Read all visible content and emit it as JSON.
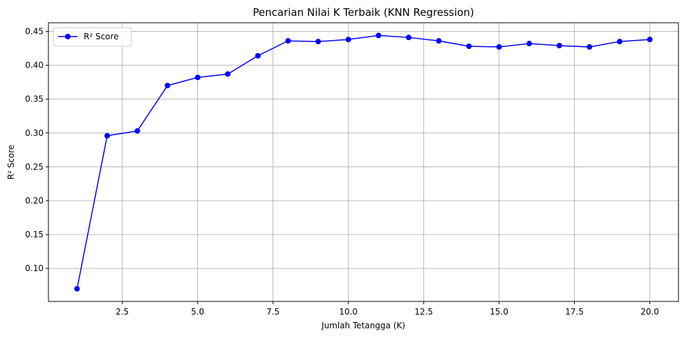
{
  "chart_data": {
    "type": "line",
    "title": "Pencarian Nilai K Terbaik (KNN Regression)",
    "xlabel": "Jumlah Tetangga (K)",
    "ylabel": "R² Score",
    "xlim": [
      0.05,
      20.95
    ],
    "ylim": [
      0.0513,
      0.4627
    ],
    "xticks": [
      "2.5",
      "5.0",
      "7.5",
      "10.0",
      "12.5",
      "15.0",
      "17.5",
      "20.0"
    ],
    "yticks": [
      "0.10",
      "0.15",
      "0.20",
      "0.25",
      "0.30",
      "0.35",
      "0.40",
      "0.45"
    ],
    "grid": true,
    "legend_position": "top-left",
    "series": [
      {
        "name": "R² Score",
        "color": "#0000ff",
        "marker": "circle",
        "x": [
          1,
          2,
          3,
          4,
          5,
          6,
          7,
          8,
          9,
          10,
          11,
          12,
          13,
          14,
          15,
          16,
          17,
          18,
          19,
          20
        ],
        "values": [
          0.07,
          0.296,
          0.303,
          0.37,
          0.382,
          0.387,
          0.414,
          0.436,
          0.435,
          0.438,
          0.444,
          0.441,
          0.436,
          0.428,
          0.427,
          0.432,
          0.429,
          0.427,
          0.435,
          0.438
        ]
      }
    ]
  }
}
